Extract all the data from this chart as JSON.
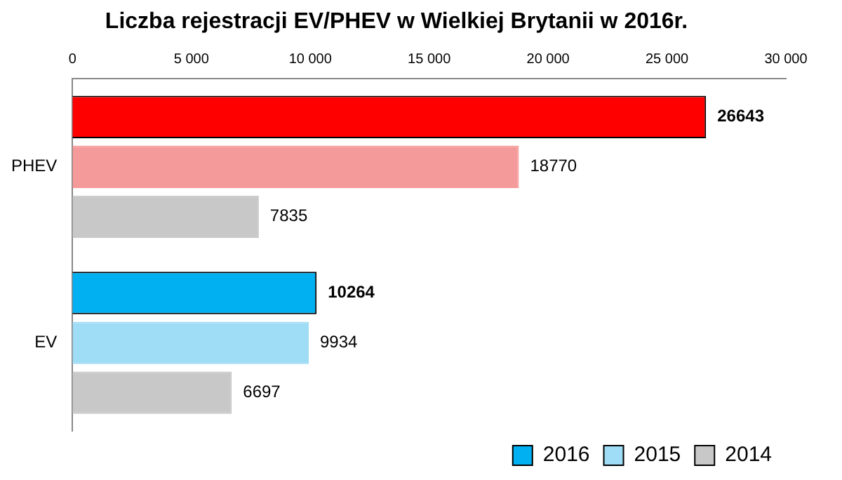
{
  "chart_data": {
    "type": "bar",
    "orientation": "horizontal",
    "title": "Liczba rejestracji EV/PHEV w Wielkiej Brytanii w 2016r.",
    "categories": [
      "PHEV",
      "EV"
    ],
    "series": [
      {
        "name": "2016",
        "color": "#00b0f0",
        "colors": [
          "#ff0000",
          "#00b0f0"
        ],
        "values": [
          26643,
          10264
        ]
      },
      {
        "name": "2015",
        "color": "#9fdcf5",
        "colors": [
          "#f59a9a",
          "#9fdcf5"
        ],
        "values": [
          18770,
          9934
        ]
      },
      {
        "name": "2014",
        "color": "#c8c8c8",
        "colors": [
          "#c8c8c8",
          "#c8c8c8"
        ],
        "values": [
          7835,
          6697
        ]
      }
    ],
    "xlim": [
      0,
      30000
    ],
    "xticks": [
      0,
      {
        "value": 5000,
        "label": "5 000"
      },
      {
        "value": 10000,
        "label": "10 000"
      },
      {
        "value": 15000,
        "label": "15 000"
      },
      {
        "value": 20000,
        "label": "20 000"
      },
      {
        "value": 25000,
        "label": "25 000"
      },
      {
        "value": 30000,
        "label": "30 000"
      }
    ],
    "data_labels": true,
    "grid": false,
    "legend": "bottom right"
  }
}
